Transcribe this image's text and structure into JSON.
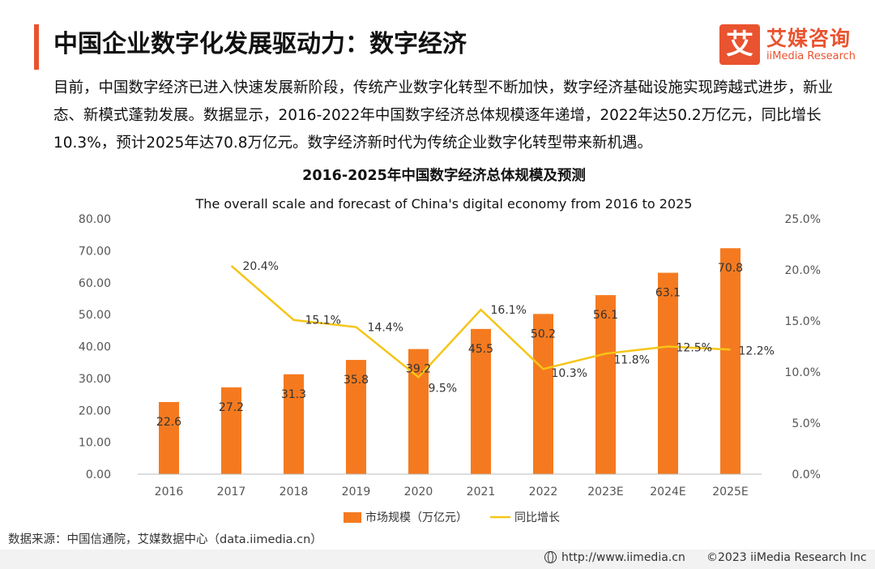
{
  "header": {
    "title": "中国企业数字化发展驱动力：数字经济",
    "logo_mark": "艾",
    "logo_cn": "艾媒咨询",
    "logo_en": "iiMedia Research",
    "accent_color": "#e9532f"
  },
  "intro": "目前，中国数字经济已进入快速发展新阶段，传统产业数字化转型不断加快，数字经济基础设施实现跨越式进步，新业态、新模式蓬勃发展。数据显示，2016-2022年中国数字经济总体规模逐年递增，2022年达50.2万亿元，同比增长10.3%，预计2025年达70.8万亿元。数字经济新时代为传统企业数字化转型带来新机遇。",
  "chart_data": {
    "type": "bar",
    "title": "2016-2025年中国数字经济总体规模及预测",
    "subtitle": "The overall scale and forecast of China's digital economy from 2016 to 2025",
    "categories": [
      "2016",
      "2017",
      "2018",
      "2019",
      "2020",
      "2021",
      "2022",
      "2023E",
      "2024E",
      "2025E"
    ],
    "series": [
      {
        "name": "市场规模（万亿元）",
        "type": "bar",
        "axis": "left",
        "color": "#f57a1f",
        "values": [
          22.6,
          27.2,
          31.3,
          35.8,
          39.2,
          45.5,
          50.2,
          56.1,
          63.1,
          70.8
        ],
        "labels": [
          "22.6",
          "27.2",
          "31.3",
          "35.8",
          "39.2",
          "45.5",
          "50.2",
          "56.1",
          "63.1",
          "70.8"
        ]
      },
      {
        "name": "同比增长",
        "type": "line",
        "axis": "right",
        "color": "#f5c518",
        "values": [
          null,
          20.4,
          15.1,
          14.4,
          9.5,
          16.1,
          10.3,
          11.8,
          12.5,
          12.2
        ],
        "labels": [
          "",
          "20.4%",
          "15.1%",
          "14.4%",
          "9.5%",
          "16.1%",
          "10.3%",
          "11.8%",
          "12.5%",
          "12.2%"
        ]
      }
    ],
    "y_left": {
      "min": 0,
      "max": 80,
      "step": 10,
      "ticks": [
        "0.00",
        "10.00",
        "20.00",
        "30.00",
        "40.00",
        "50.00",
        "60.00",
        "70.00",
        "80.00"
      ]
    },
    "y_right": {
      "min": 0,
      "max": 25,
      "step": 5,
      "ticks": [
        "0.0%",
        "5.0%",
        "10.0%",
        "15.0%",
        "20.0%",
        "25.0%"
      ]
    },
    "legend": {
      "position": "bottom"
    },
    "grid": false
  },
  "source": "数据来源：中国信通院，艾媒数据中心（data.iimedia.cn）",
  "footer": {
    "url": "http://www.iimedia.cn",
    "copyright": "©2023  iiMedia Research  Inc"
  }
}
